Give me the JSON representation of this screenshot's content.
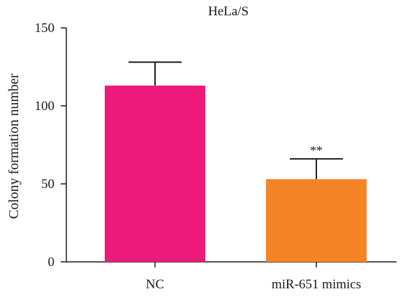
{
  "chart_data": {
    "type": "bar",
    "title": "HeLa/S",
    "xlabel": "",
    "ylabel": "Colony formation number",
    "ylim": [
      0,
      150
    ],
    "yticks": [
      0,
      50,
      100,
      150
    ],
    "categories": [
      "NC",
      "miR-651 mimics"
    ],
    "values": [
      113,
      53
    ],
    "error_upper": [
      128,
      66
    ],
    "significance": [
      "",
      "**"
    ],
    "colors": [
      "#ec1a7b",
      "#f58426"
    ],
    "grid": false,
    "legend": "none"
  }
}
